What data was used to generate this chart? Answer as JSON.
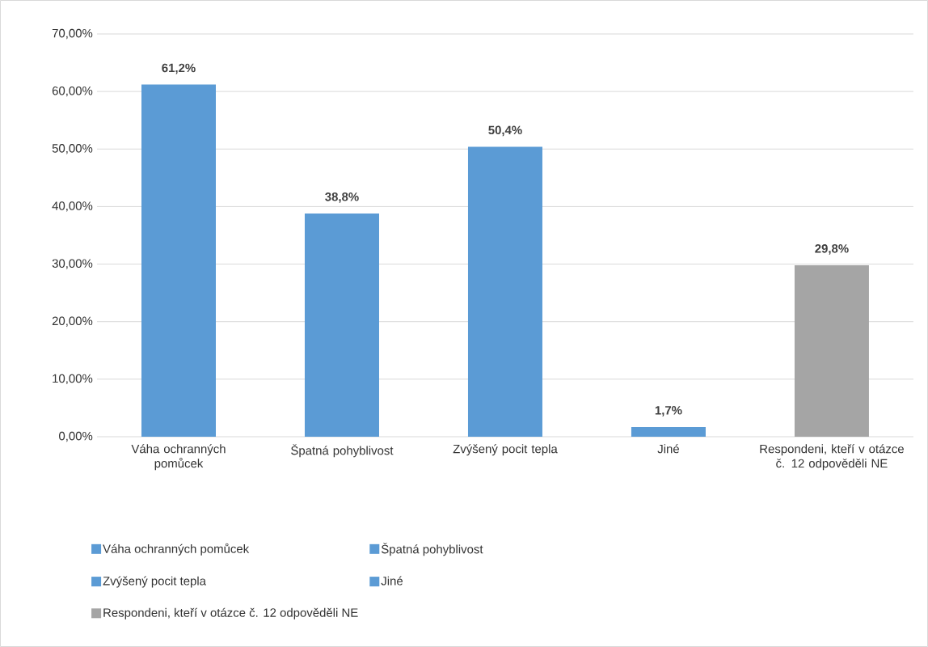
{
  "chart_data": {
    "type": "bar",
    "categories": [
      "Váha ochranných pomůcek",
      "Špatná pohyblivost",
      "Zvýšený pocit tepla",
      "Jiné",
      "Respondeni, kteří v otázce č. 12 odpověděli NE"
    ],
    "series": [
      {
        "name": "Váha ochranných pomůcek",
        "color": "#5b9bd5",
        "values": [
          61.2,
          null,
          null,
          null,
          null
        ],
        "value_labels": [
          "61,2%",
          null,
          null,
          null,
          null
        ]
      },
      {
        "name": "Špatná pohyblivost",
        "color": "#5b9bd5",
        "values": [
          null,
          38.8,
          null,
          null,
          null
        ],
        "value_labels": [
          null,
          "38,8%",
          null,
          null,
          null
        ]
      },
      {
        "name": "Zvýšený pocit tepla",
        "color": "#5b9bd5",
        "values": [
          null,
          null,
          50.4,
          null,
          null
        ],
        "value_labels": [
          null,
          null,
          "50,4%",
          null,
          null
        ]
      },
      {
        "name": "Jiné",
        "color": "#5b9bd5",
        "values": [
          null,
          null,
          null,
          1.7,
          null
        ],
        "value_labels": [
          null,
          null,
          null,
          "1,7%",
          null
        ]
      },
      {
        "name": "Respondeni, kteří v otázce č. 12 odpověděli NE",
        "color": "#a5a5a5",
        "values": [
          null,
          null,
          null,
          null,
          29.8
        ],
        "value_labels": [
          null,
          null,
          null,
          null,
          "29,8%"
        ]
      }
    ],
    "ylim": [
      0,
      70
    ],
    "yticks": [
      {
        "value": 0,
        "label": "0,00%"
      },
      {
        "value": 10,
        "label": "10,00%"
      },
      {
        "value": 20,
        "label": "20,00%"
      },
      {
        "value": 30,
        "label": "30,00%"
      },
      {
        "value": 40,
        "label": "40,00%"
      },
      {
        "value": 50,
        "label": "50,00%"
      },
      {
        "value": 60,
        "label": "60,00%"
      },
      {
        "value": 70,
        "label": "70,00%"
      }
    ],
    "grid": "y",
    "legend": "bottom"
  }
}
